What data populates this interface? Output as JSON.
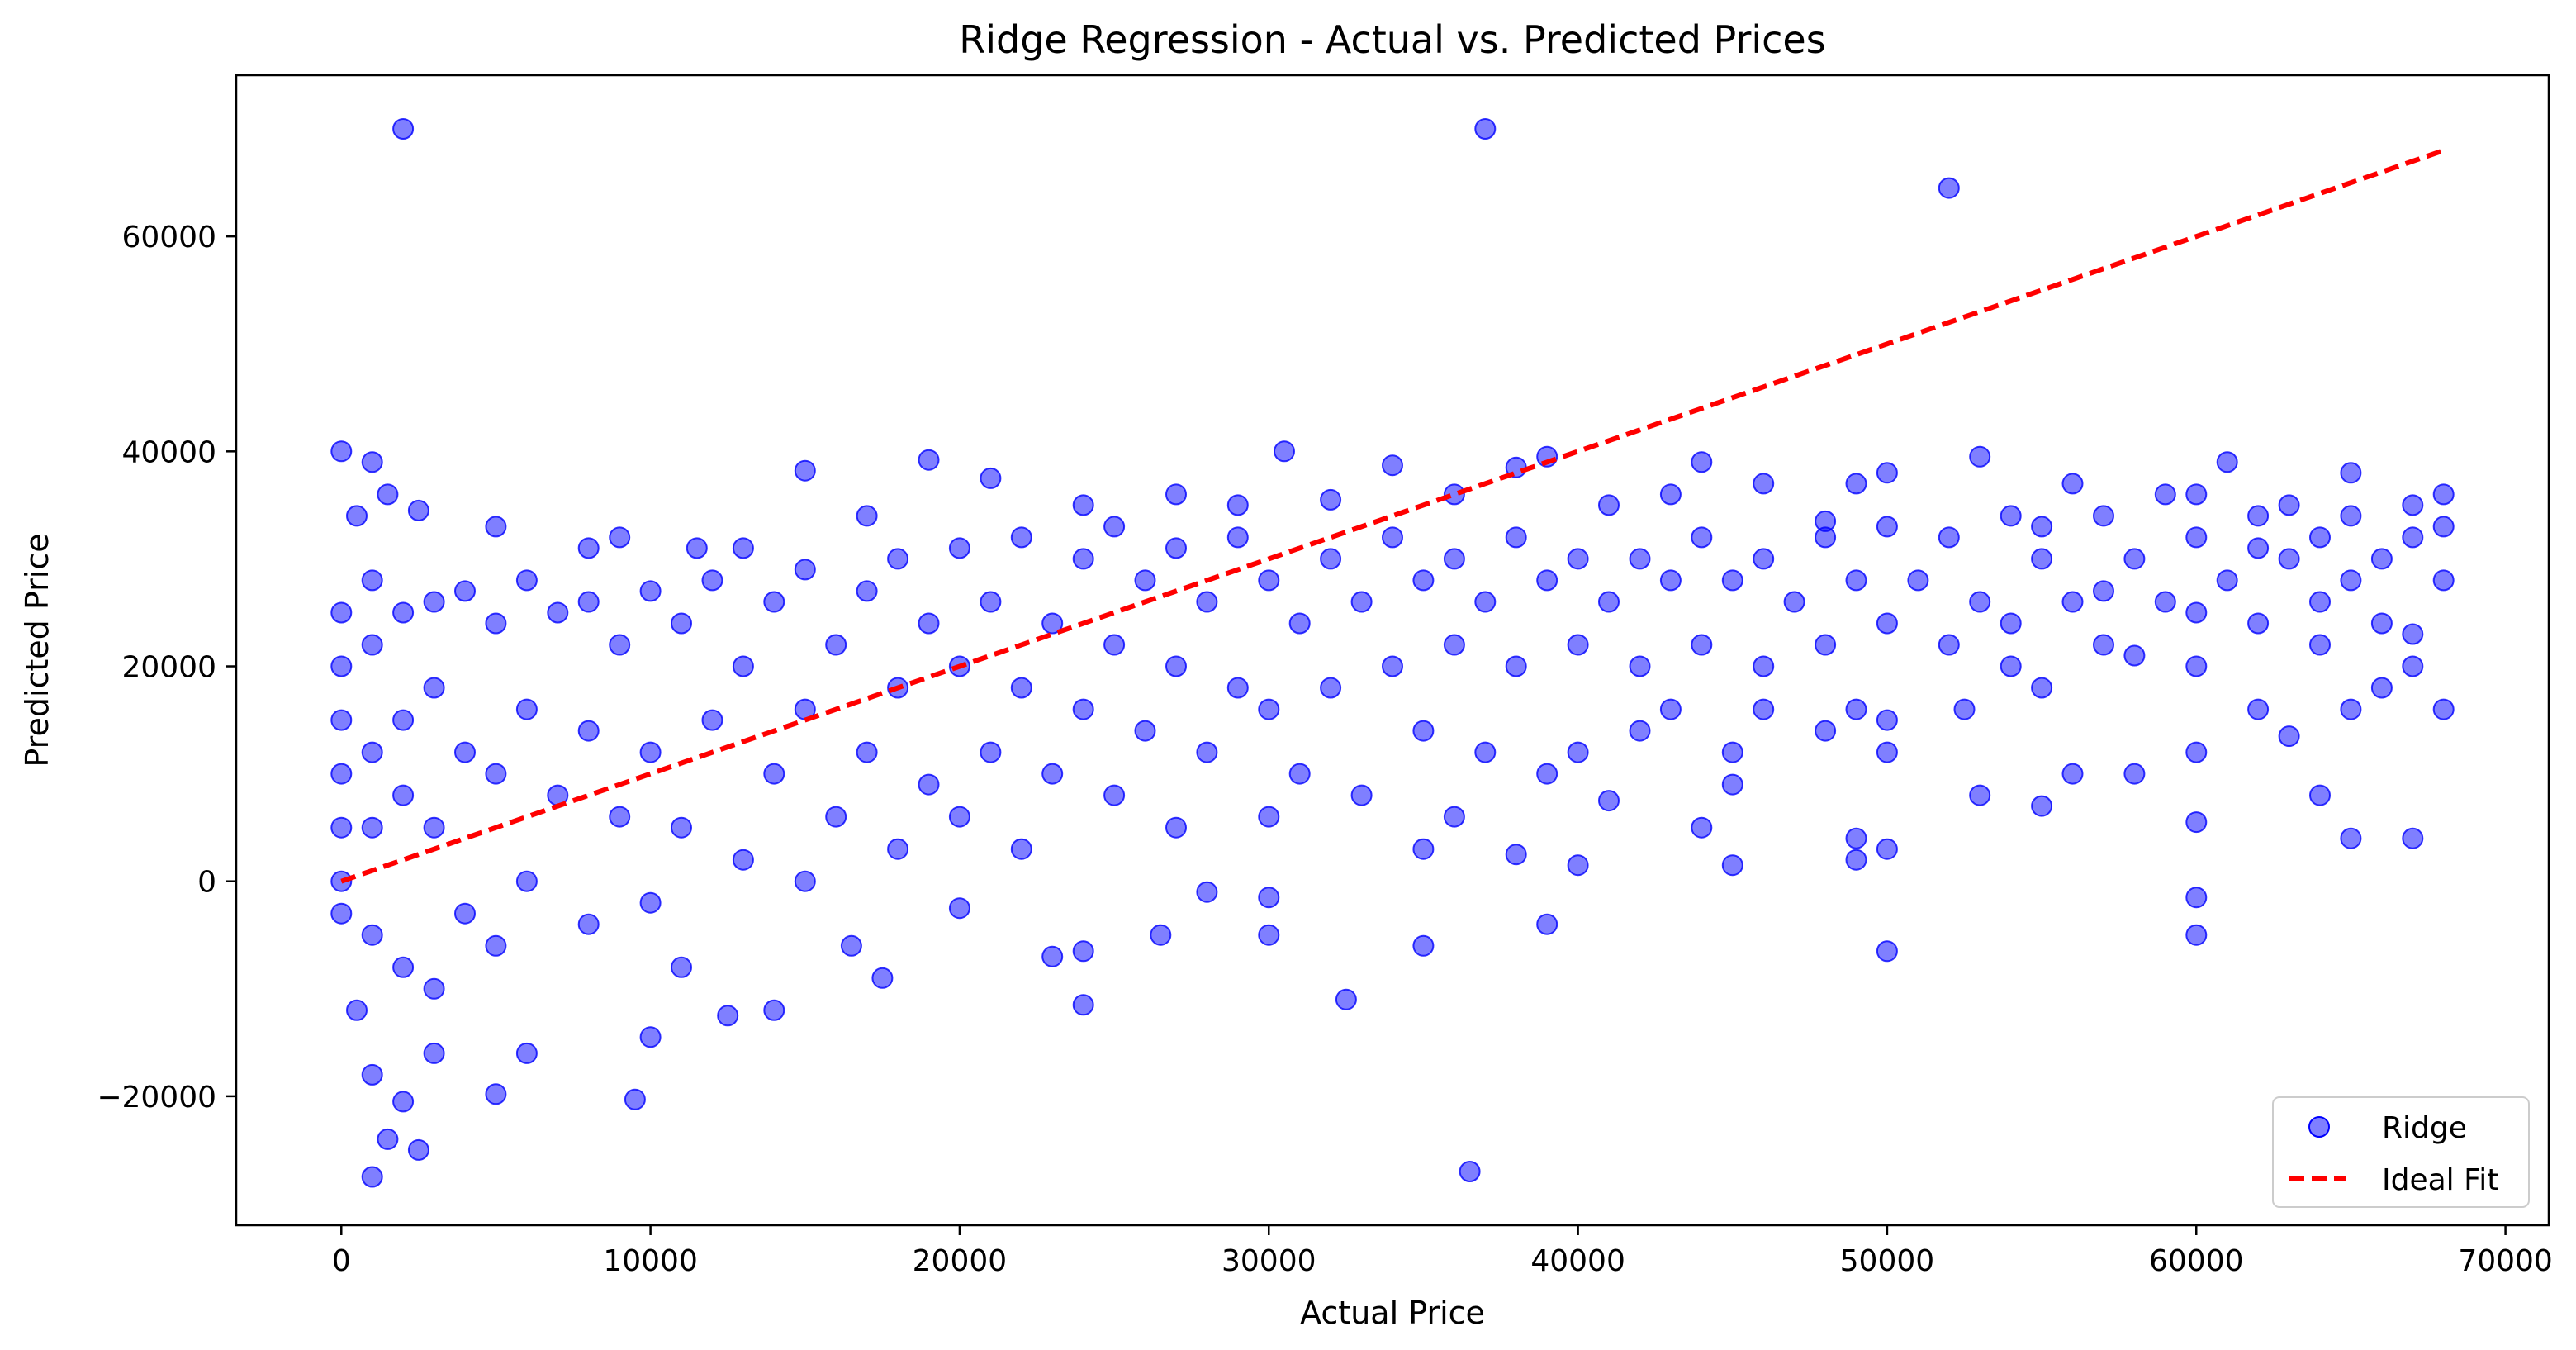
{
  "chart_data": {
    "type": "scatter",
    "title": "Ridge Regression - Actual vs. Predicted Prices",
    "xlabel": "Actual Price",
    "ylabel": "Predicted Price",
    "xlim": [
      -3400,
      71400
    ],
    "ylim": [
      -32000,
      75000
    ],
    "x_ticks": [
      0,
      10000,
      20000,
      30000,
      40000,
      50000,
      60000,
      70000
    ],
    "x_tick_labels": [
      "0",
      "10000",
      "20000",
      "30000",
      "40000",
      "50000",
      "60000",
      "70000"
    ],
    "y_ticks": [
      -20000,
      0,
      20000,
      40000,
      60000
    ],
    "y_tick_labels": [
      "−20000",
      "0",
      "20000",
      "40000",
      "60000"
    ],
    "grid": false,
    "legend_position": "lower right",
    "legend": [
      {
        "label": "Ridge",
        "kind": "marker",
        "color": "#0000ff"
      },
      {
        "label": "Ideal Fit",
        "kind": "dashed-line",
        "color": "#ff0000"
      }
    ],
    "series": [
      {
        "name": "Ridge",
        "kind": "scatter",
        "color": "#0000ff",
        "alpha": 0.5,
        "trend": "predicted ≈ 12500 + 0.22·actual, spread roughly ±9000, heavy density for actual < 40000",
        "points": [
          [
            2000,
            70000
          ],
          [
            37000,
            70000
          ],
          [
            52000,
            64500
          ],
          [
            36500,
            -27000
          ],
          [
            1000,
            -27500
          ],
          [
            0,
            40000
          ],
          [
            1000,
            39000
          ],
          [
            19000,
            39200
          ],
          [
            30500,
            40000
          ],
          [
            34000,
            38700
          ],
          [
            44000,
            39000
          ],
          [
            53000,
            39500
          ],
          [
            61000,
            39000
          ],
          [
            15000,
            38200
          ],
          [
            39000,
            39500
          ],
          [
            60000,
            36000
          ],
          [
            65000,
            38000
          ],
          [
            68000,
            36000
          ],
          [
            48000,
            33500
          ],
          [
            55000,
            33000
          ],
          [
            62000,
            31000
          ],
          [
            66000,
            30000
          ],
          [
            57000,
            27000
          ],
          [
            60000,
            25000
          ],
          [
            64000,
            26000
          ],
          [
            67000,
            23000
          ],
          [
            58000,
            21000
          ],
          [
            54000,
            20000
          ],
          [
            50000,
            15000
          ],
          [
            52500,
            16000
          ],
          [
            46000,
            16000
          ],
          [
            42000,
            14000
          ],
          [
            45000,
            9000
          ],
          [
            40000,
            1500
          ],
          [
            30000,
            -1500
          ],
          [
            30000,
            -5000
          ],
          [
            32500,
            -11000
          ],
          [
            35000,
            -6000
          ],
          [
            39000,
            -4000
          ],
          [
            24000,
            -11500
          ],
          [
            50000,
            -6500
          ],
          [
            60000,
            -1500
          ],
          [
            60000,
            -5000
          ],
          [
            67000,
            4000
          ],
          [
            65000,
            4000
          ],
          [
            60000,
            5500
          ],
          [
            64000,
            8000
          ],
          [
            55000,
            7000
          ],
          [
            53000,
            8000
          ],
          [
            49000,
            4000
          ],
          [
            45000,
            1500
          ],
          [
            49000,
            2000
          ],
          [
            50000,
            3000
          ],
          [
            48000,
            14000
          ],
          [
            56000,
            10000
          ],
          [
            58000,
            10000
          ],
          [
            62000,
            16000
          ],
          [
            63000,
            13500
          ],
          [
            66000,
            18000
          ],
          [
            68000,
            16000
          ],
          [
            0,
            -3000
          ],
          [
            500,
            -12000
          ],
          [
            1000,
            -18000
          ],
          [
            1500,
            -24000
          ],
          [
            2500,
            -25000
          ],
          [
            2000,
            -20500
          ],
          [
            3000,
            -16000
          ],
          [
            5000,
            -19800
          ],
          [
            9500,
            -20300
          ],
          [
            6000,
            -16000
          ],
          [
            10000,
            -14500
          ],
          [
            12500,
            -12500
          ],
          [
            14000,
            -12000
          ],
          [
            11000,
            -8000
          ],
          [
            17500,
            -9000
          ],
          [
            16500,
            -6000
          ],
          [
            20000,
            -2500
          ],
          [
            23000,
            -7000
          ],
          [
            24000,
            -6500
          ],
          [
            26500,
            -5000
          ],
          [
            28000,
            -1000
          ],
          [
            35000,
            3000
          ],
          [
            38000,
            2500
          ],
          [
            41000,
            7500
          ],
          [
            44000,
            5000
          ],
          [
            500,
            34000
          ],
          [
            1500,
            36000
          ],
          [
            2500,
            34500
          ],
          [
            5000,
            33000
          ],
          [
            8000,
            31000
          ],
          [
            9000,
            32000
          ],
          [
            11500,
            31000
          ],
          [
            13000,
            31000
          ],
          [
            17000,
            34000
          ],
          [
            21000,
            37500
          ],
          [
            24000,
            35000
          ],
          [
            27000,
            36000
          ],
          [
            29000,
            35000
          ],
          [
            32000,
            35500
          ],
          [
            36000,
            36000
          ],
          [
            38000,
            38500
          ],
          [
            41000,
            35000
          ],
          [
            43000,
            36000
          ],
          [
            46000,
            37000
          ],
          [
            49000,
            37000
          ],
          [
            50000,
            38000
          ],
          [
            56000,
            37000
          ],
          [
            59000,
            36000
          ],
          [
            63000,
            35000
          ],
          [
            67000,
            35000
          ],
          [
            0,
            25000
          ],
          [
            0,
            20000
          ],
          [
            0,
            15000
          ],
          [
            0,
            10000
          ],
          [
            0,
            5000
          ],
          [
            0,
            0
          ],
          [
            1000,
            28000
          ],
          [
            1000,
            22000
          ],
          [
            1000,
            12000
          ],
          [
            1000,
            5000
          ],
          [
            1000,
            -5000
          ],
          [
            2000,
            25000
          ],
          [
            2000,
            15000
          ],
          [
            2000,
            8000
          ],
          [
            2000,
            -8000
          ],
          [
            3000,
            26000
          ],
          [
            3000,
            18000
          ],
          [
            3000,
            5000
          ],
          [
            3000,
            -10000
          ],
          [
            4000,
            27000
          ],
          [
            4000,
            12000
          ],
          [
            4000,
            -3000
          ],
          [
            5000,
            24000
          ],
          [
            5000,
            10000
          ],
          [
            5000,
            -6000
          ],
          [
            6000,
            28000
          ],
          [
            6000,
            16000
          ],
          [
            6000,
            0
          ],
          [
            7000,
            25000
          ],
          [
            7000,
            8000
          ],
          [
            8000,
            26000
          ],
          [
            8000,
            14000
          ],
          [
            8000,
            -4000
          ],
          [
            9000,
            22000
          ],
          [
            9000,
            6000
          ],
          [
            10000,
            27000
          ],
          [
            10000,
            12000
          ],
          [
            10000,
            -2000
          ],
          [
            11000,
            24000
          ],
          [
            11000,
            5000
          ],
          [
            12000,
            28000
          ],
          [
            12000,
            15000
          ],
          [
            13000,
            20000
          ],
          [
            13000,
            2000
          ],
          [
            14000,
            26000
          ],
          [
            14000,
            10000
          ],
          [
            15000,
            29000
          ],
          [
            15000,
            16000
          ],
          [
            15000,
            0
          ],
          [
            16000,
            22000
          ],
          [
            16000,
            6000
          ],
          [
            17000,
            27000
          ],
          [
            17000,
            12000
          ],
          [
            18000,
            30000
          ],
          [
            18000,
            18000
          ],
          [
            18000,
            3000
          ],
          [
            19000,
            24000
          ],
          [
            19000,
            9000
          ],
          [
            20000,
            31000
          ],
          [
            20000,
            20000
          ],
          [
            20000,
            6000
          ],
          [
            21000,
            26000
          ],
          [
            21000,
            12000
          ],
          [
            22000,
            32000
          ],
          [
            22000,
            18000
          ],
          [
            22000,
            3000
          ],
          [
            23000,
            24000
          ],
          [
            23000,
            10000
          ],
          [
            24000,
            30000
          ],
          [
            24000,
            16000
          ],
          [
            25000,
            33000
          ],
          [
            25000,
            22000
          ],
          [
            25000,
            8000
          ],
          [
            26000,
            28000
          ],
          [
            26000,
            14000
          ],
          [
            27000,
            31000
          ],
          [
            27000,
            20000
          ],
          [
            27000,
            5000
          ],
          [
            28000,
            26000
          ],
          [
            28000,
            12000
          ],
          [
            29000,
            32000
          ],
          [
            29000,
            18000
          ],
          [
            30000,
            28000
          ],
          [
            30000,
            16000
          ],
          [
            30000,
            6000
          ],
          [
            31000,
            24000
          ],
          [
            31000,
            10000
          ],
          [
            32000,
            30000
          ],
          [
            32000,
            18000
          ],
          [
            33000,
            26000
          ],
          [
            33000,
            8000
          ],
          [
            34000,
            32000
          ],
          [
            34000,
            20000
          ],
          [
            35000,
            28000
          ],
          [
            35000,
            14000
          ],
          [
            36000,
            30000
          ],
          [
            36000,
            22000
          ],
          [
            36000,
            6000
          ],
          [
            37000,
            26000
          ],
          [
            37000,
            12000
          ],
          [
            38000,
            32000
          ],
          [
            38000,
            20000
          ],
          [
            39000,
            28000
          ],
          [
            39000,
            10000
          ],
          [
            40000,
            30000
          ],
          [
            40000,
            22000
          ],
          [
            40000,
            12000
          ],
          [
            41000,
            26000
          ],
          [
            42000,
            30000
          ],
          [
            42000,
            20000
          ],
          [
            43000,
            28000
          ],
          [
            43000,
            16000
          ],
          [
            44000,
            32000
          ],
          [
            44000,
            22000
          ],
          [
            45000,
            28000
          ],
          [
            45000,
            12000
          ],
          [
            46000,
            30000
          ],
          [
            46000,
            20000
          ],
          [
            47000,
            26000
          ],
          [
            48000,
            32000
          ],
          [
            48000,
            22000
          ],
          [
            49000,
            28000
          ],
          [
            49000,
            16000
          ],
          [
            50000,
            33000
          ],
          [
            50000,
            24000
          ],
          [
            50000,
            12000
          ],
          [
            51000,
            28000
          ],
          [
            52000,
            32000
          ],
          [
            52000,
            22000
          ],
          [
            53000,
            26000
          ],
          [
            54000,
            34000
          ],
          [
            54000,
            24000
          ],
          [
            55000,
            30000
          ],
          [
            55000,
            18000
          ],
          [
            56000,
            26000
          ],
          [
            57000,
            34000
          ],
          [
            57000,
            22000
          ],
          [
            58000,
            30000
          ],
          [
            59000,
            26000
          ],
          [
            60000,
            32000
          ],
          [
            60000,
            20000
          ],
          [
            60000,
            12000
          ],
          [
            61000,
            28000
          ],
          [
            62000,
            34000
          ],
          [
            62000,
            24000
          ],
          [
            63000,
            30000
          ],
          [
            64000,
            32000
          ],
          [
            64000,
            22000
          ],
          [
            65000,
            34000
          ],
          [
            65000,
            28000
          ],
          [
            65000,
            16000
          ],
          [
            66000,
            24000
          ],
          [
            67000,
            32000
          ],
          [
            67000,
            20000
          ],
          [
            68000,
            33000
          ],
          [
            68000,
            28000
          ]
        ]
      },
      {
        "name": "Ideal Fit",
        "kind": "line",
        "style": "dashed",
        "color": "#ff0000",
        "x": [
          0,
          68000
        ],
        "y": [
          0,
          68000
        ]
      }
    ]
  }
}
